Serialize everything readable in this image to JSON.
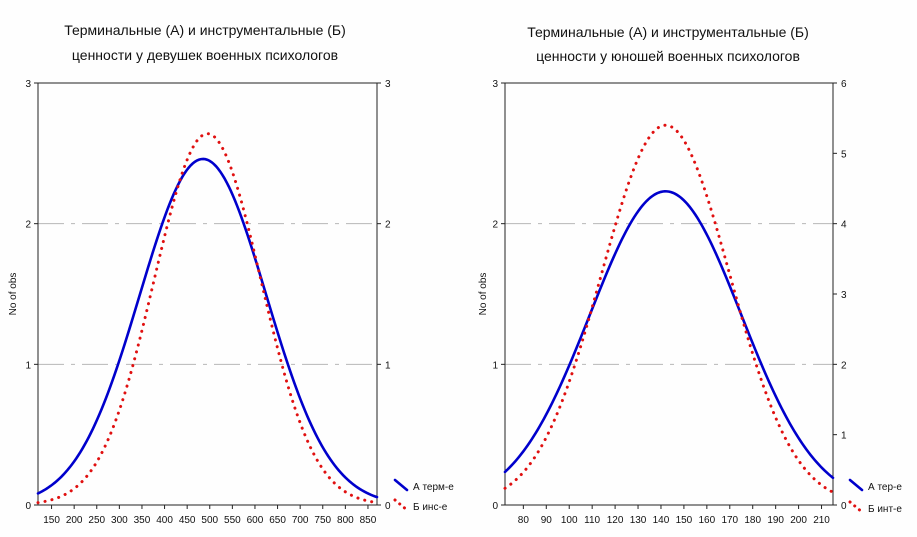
{
  "chart_data": [
    {
      "type": "line",
      "title_lines": [
        "Терминальные (А) и инструментальные (Б)",
        "ценности у девушек военных психологов"
      ],
      "ylabel": "No of obs",
      "xlabel": "",
      "x_ticks": [
        150,
        200,
        250,
        300,
        350,
        400,
        450,
        500,
        550,
        600,
        650,
        700,
        750,
        800,
        850
      ],
      "xlim": [
        120,
        870
      ],
      "ylim_left": [
        0,
        3
      ],
      "ylim_right": [
        0,
        3
      ],
      "y_ticks_left": [
        0,
        1,
        2,
        3
      ],
      "y_ticks_right": [
        0,
        1,
        2,
        3
      ],
      "grid": true,
      "legend_position": "bottom-right",
      "series": [
        {
          "name": "А терм-е",
          "color": "#0000cc",
          "style": "solid",
          "axis": "left",
          "mean": 485,
          "sd": 140,
          "peak": 2.46
        },
        {
          "name": "Б инс-е",
          "color": "#e01010",
          "style": "dotted",
          "axis": "right",
          "mean": 495,
          "sd": 118,
          "peak": 2.64
        }
      ]
    },
    {
      "type": "line",
      "title_lines": [
        "Терминальные (А) и инструментальные (Б)",
        "ценности у юношей военных психологов"
      ],
      "ylabel": "No of obs",
      "xlabel": "",
      "x_ticks": [
        80,
        90,
        100,
        110,
        120,
        130,
        140,
        150,
        160,
        170,
        180,
        190,
        200,
        210
      ],
      "xlim": [
        72,
        215
      ],
      "ylim_left": [
        0,
        3
      ],
      "ylim_right": [
        0,
        6
      ],
      "y_ticks_left": [
        0,
        1,
        2,
        3
      ],
      "y_ticks_right": [
        0,
        1,
        2,
        3,
        4,
        5,
        6
      ],
      "grid": true,
      "legend_position": "bottom-right",
      "series": [
        {
          "name": "А тер-е",
          "color": "#0000cc",
          "style": "solid",
          "axis": "left",
          "mean": 142,
          "sd": 33,
          "peak": 2.23
        },
        {
          "name": "Б инт-е",
          "color": "#e01010",
          "style": "dotted",
          "axis": "right",
          "mean": 142,
          "sd": 28,
          "peak": 2.7
        }
      ]
    }
  ]
}
